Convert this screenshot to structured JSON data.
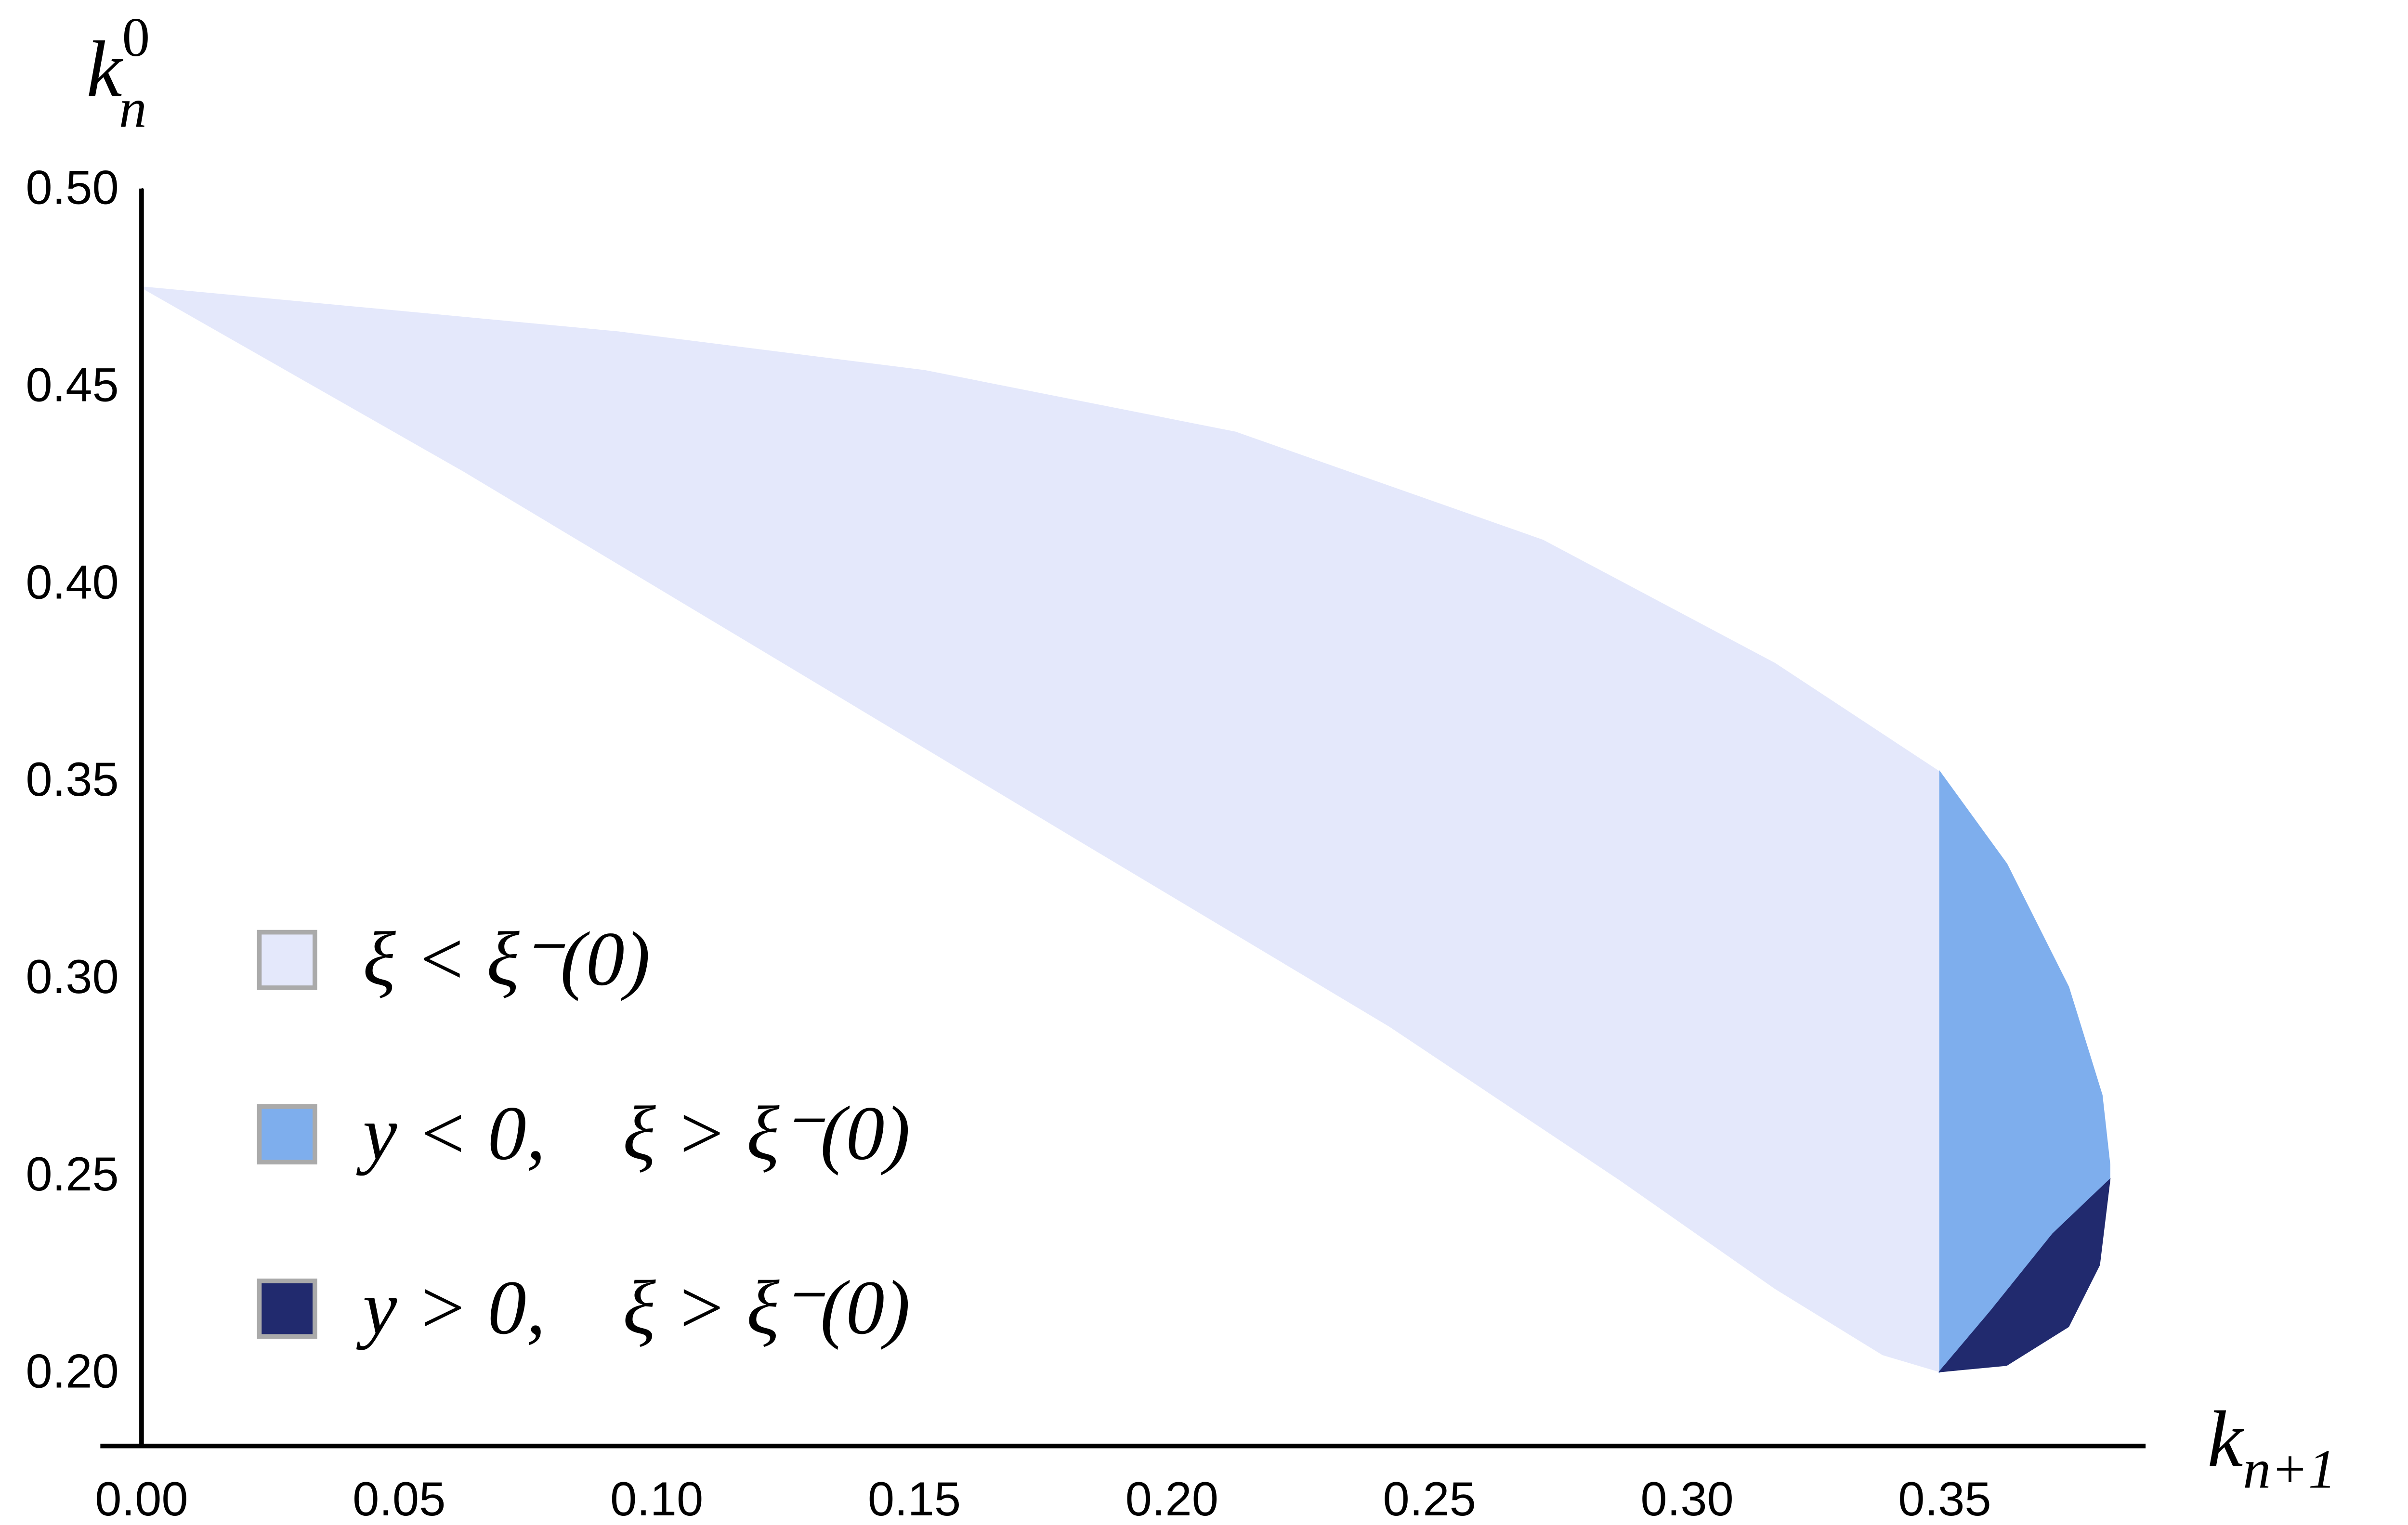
{
  "chart_data": {
    "type": "region",
    "y_label": {
      "base": "k",
      "sub": "n",
      "sup": "0"
    },
    "x_label": {
      "base": "k",
      "sub": "n+1"
    },
    "xlim": [
      -0.008,
      0.389
    ],
    "ylim": [
      0.1813,
      0.5
    ],
    "xticks": [
      {
        "value": 0,
        "label": "0.00"
      },
      {
        "value": 0.05,
        "label": "0.05"
      },
      {
        "value": 0.1,
        "label": "0.10"
      },
      {
        "value": 0.15,
        "label": "0.15"
      },
      {
        "value": 0.2,
        "label": "0.20"
      },
      {
        "value": 0.25,
        "label": "0.25"
      },
      {
        "value": 0.3,
        "label": "0.30"
      },
      {
        "value": 0.35,
        "label": "0.35"
      }
    ],
    "yticks": [
      {
        "value": 0.2,
        "label": "0.20"
      },
      {
        "value": 0.25,
        "label": "0.25"
      },
      {
        "value": 0.3,
        "label": "0.30"
      },
      {
        "value": 0.35,
        "label": "0.35"
      },
      {
        "value": 0.4,
        "label": "0.40"
      },
      {
        "value": 0.45,
        "label": "0.45"
      },
      {
        "value": 0.5,
        "label": "0.50"
      }
    ],
    "legend": "left",
    "series": [
      {
        "name": "ξ < ξ⁻(0)",
        "color": "#e4e8fb",
        "x": [
          0,
          0.0925,
          0.152,
          0.2123,
          0.272,
          0.317,
          0.3491,
          0.3491,
          0.338,
          0.3171,
          0.2871,
          0.2422,
          0.1823,
          0.1225,
          0.0626
        ],
        "y": [
          0.475,
          0.4636,
          0.4538,
          0.4382,
          0.4108,
          0.3796,
          0.352,
          0.2002,
          0.2045,
          0.2213,
          0.2487,
          0.2878,
          0.3346,
          0.3815,
          0.4284
        ]
      },
      {
        "name": "y < 0,    ξ > ξ⁻(0)",
        "color": "#7eaeed",
        "x": [
          0.3491,
          0.362,
          0.374,
          0.3805,
          0.382,
          0.382,
          0.371,
          0.359,
          0.3491
        ],
        "y": [
          0.352,
          0.3288,
          0.2976,
          0.2702,
          0.2526,
          0.2487,
          0.235,
          0.2155,
          0.2002
        ]
      },
      {
        "name": "y > 0,    ξ > ξ⁻(0)",
        "color": "#212a6e",
        "x": [
          0.3491,
          0.362,
          0.374,
          0.38,
          0.382,
          0.371,
          0.359
        ],
        "y": [
          0.2002,
          0.2018,
          0.2116,
          0.2272,
          0.2487,
          0.235,
          0.2155
        ]
      }
    ]
  }
}
